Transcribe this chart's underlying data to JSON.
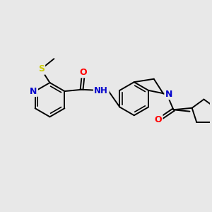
{
  "bg_color": "#e8e8e8",
  "bond_color": "#000000",
  "bond_width": 1.4,
  "atom_colors": {
    "N": "#0000cc",
    "O": "#ff0000",
    "S": "#cccc00",
    "C": "#000000"
  },
  "fig_w": 3.0,
  "fig_h": 3.0,
  "dpi": 100,
  "xlim": [
    0,
    10
  ],
  "ylim": [
    0,
    10
  ]
}
